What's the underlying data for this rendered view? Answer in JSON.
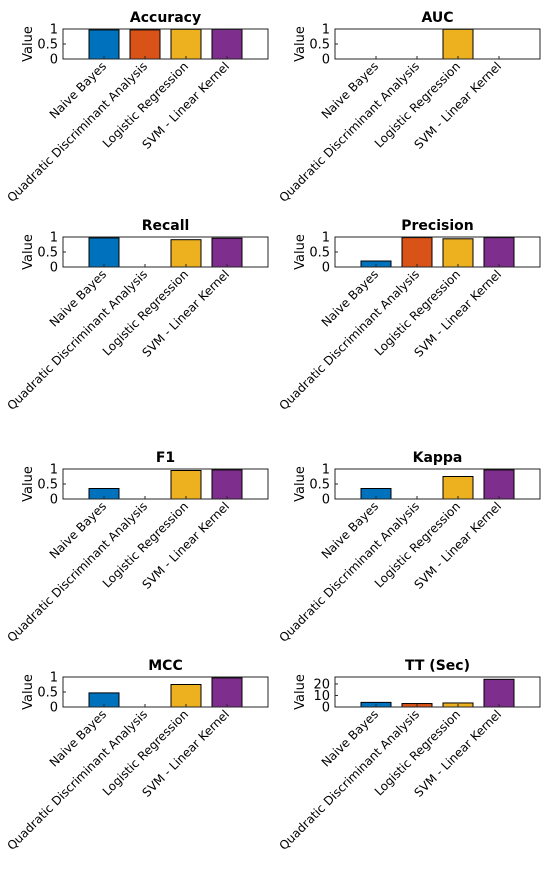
{
  "figure": {
    "categories": [
      "Naive Bayes",
      "Quadratic Discriminant Analysis",
      "Logistic Regression",
      "SVM - Linear Kernel"
    ],
    "colors": [
      "#0072BD",
      "#D95319",
      "#EDB120",
      "#7E2F8E"
    ],
    "ylabel": "Value"
  },
  "chart_data": [
    {
      "type": "bar",
      "title": "Accuracy",
      "categories": [
        "Naive Bayes",
        "Quadratic Discriminant Analysis",
        "Logistic Regression",
        "SVM - Linear Kernel"
      ],
      "values": [
        0.97,
        0.97,
        0.99,
        0.99
      ],
      "ylabel": "Value",
      "ylim": [
        0,
        1
      ],
      "yticks": [
        0,
        0.5,
        1
      ],
      "ytick_labels": [
        "0",
        "0.5",
        "1"
      ],
      "grid": false
    },
    {
      "type": "bar",
      "title": "AUC",
      "categories": [
        "Naive Bayes",
        "Quadratic Discriminant Analysis",
        "Logistic Regression",
        "SVM - Linear Kernel"
      ],
      "values": [
        0,
        0,
        0.99,
        0
      ],
      "ylabel": "Value",
      "ylim": [
        0,
        1
      ],
      "yticks": [
        0,
        0.5,
        1
      ],
      "ytick_labels": [
        "0",
        "0.5",
        "1"
      ],
      "grid": false
    },
    {
      "type": "bar",
      "title": "Recall",
      "categories": [
        "Naive Bayes",
        "Quadratic Discriminant Analysis",
        "Logistic Regression",
        "SVM - Linear Kernel"
      ],
      "values": [
        0.97,
        0,
        0.91,
        0.96
      ],
      "ylabel": "Value",
      "ylim": [
        0,
        1
      ],
      "yticks": [
        0,
        0.5,
        1
      ],
      "ytick_labels": [
        "0",
        "0.5",
        "1"
      ],
      "grid": false
    },
    {
      "type": "bar",
      "title": "Precision",
      "categories": [
        "Naive Bayes",
        "Quadratic Discriminant Analysis",
        "Logistic Regression",
        "SVM - Linear Kernel"
      ],
      "values": [
        0.2,
        0.98,
        0.94,
        0.98
      ],
      "ylabel": "Value",
      "ylim": [
        0,
        1
      ],
      "yticks": [
        0,
        0.5,
        1
      ],
      "ytick_labels": [
        "0",
        "0.5",
        "1"
      ],
      "grid": false
    },
    {
      "type": "bar",
      "title": "F1",
      "categories": [
        "Naive Bayes",
        "Quadratic Discriminant Analysis",
        "Logistic Regression",
        "SVM - Linear Kernel"
      ],
      "values": [
        0.35,
        0,
        0.95,
        0.97
      ],
      "ylabel": "Value",
      "ylim": [
        0,
        1
      ],
      "yticks": [
        0,
        0.5,
        1
      ],
      "ytick_labels": [
        "0",
        "0.5",
        "1"
      ],
      "grid": false
    },
    {
      "type": "bar",
      "title": "Kappa",
      "categories": [
        "Naive Bayes",
        "Quadratic Discriminant Analysis",
        "Logistic Regression",
        "SVM - Linear Kernel"
      ],
      "values": [
        0.35,
        0,
        0.75,
        0.97
      ],
      "ylabel": "Value",
      "ylim": [
        0,
        1
      ],
      "yticks": [
        0,
        0.5,
        1
      ],
      "ytick_labels": [
        "0",
        "0.5",
        "1"
      ],
      "grid": false
    },
    {
      "type": "bar",
      "title": "MCC",
      "categories": [
        "Naive Bayes",
        "Quadratic Discriminant Analysis",
        "Logistic Regression",
        "SVM - Linear Kernel"
      ],
      "values": [
        0.47,
        0,
        0.75,
        0.97
      ],
      "ylabel": "Value",
      "ylim": [
        0,
        1
      ],
      "yticks": [
        0,
        0.5,
        1
      ],
      "ytick_labels": [
        "0",
        "0.5",
        "1"
      ],
      "grid": false
    },
    {
      "type": "bar",
      "title": "TT (Sec)",
      "categories": [
        "Naive Bayes",
        "Quadratic Discriminant Analysis",
        "Logistic Regression",
        "SVM - Linear Kernel"
      ],
      "values": [
        4,
        3,
        3.5,
        24
      ],
      "ylabel": "Value",
      "ylim": [
        0,
        26
      ],
      "yticks": [
        0,
        10,
        20
      ],
      "ytick_labels": [
        "0",
        "10",
        "20"
      ],
      "grid": false
    }
  ]
}
